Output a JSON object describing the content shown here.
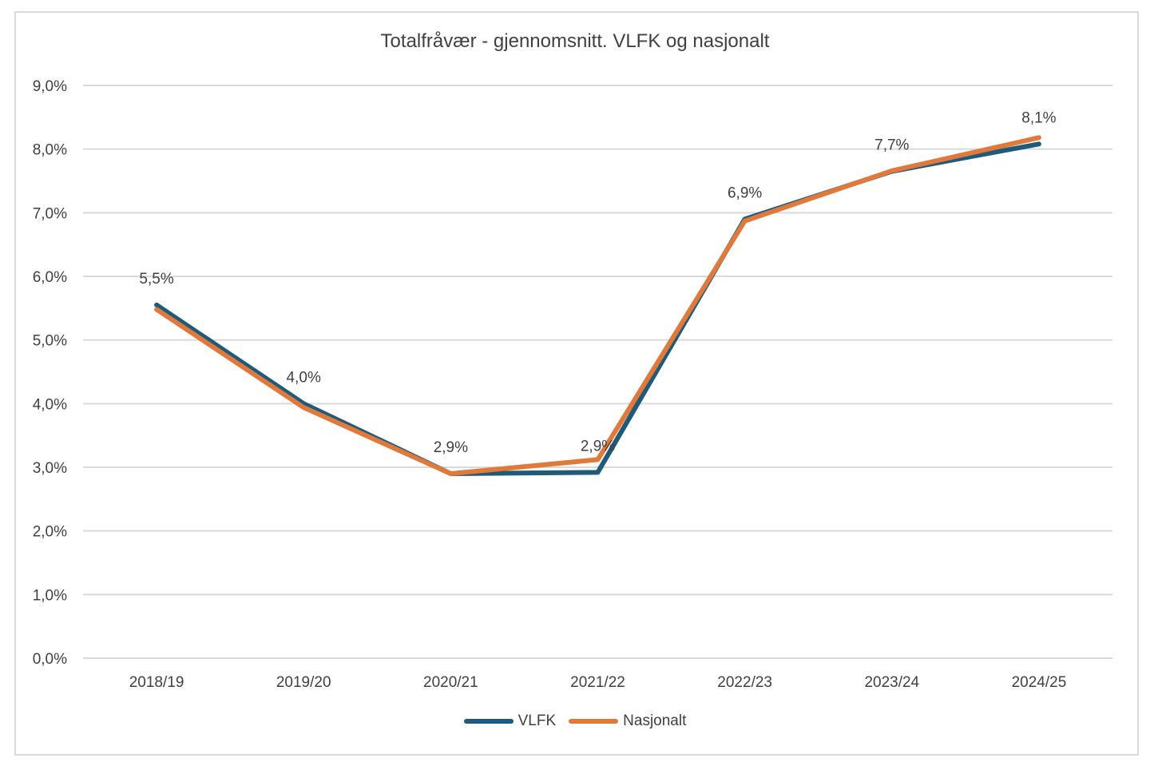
{
  "chart_data": {
    "type": "line",
    "title": "Totalfråvær - gjennomsnitt. VLFK og nasjonalt",
    "categories": [
      "2018/19",
      "2019/20",
      "2020/21",
      "2021/22",
      "2022/23",
      "2023/24",
      "2024/25"
    ],
    "series": [
      {
        "name": "VLFK",
        "color": "#1f5a7a",
        "values": [
          5.55,
          4.0,
          2.9,
          2.92,
          6.9,
          7.65,
          8.08
        ]
      },
      {
        "name": "Nasjonalt",
        "color": "#e07a3c",
        "values": [
          5.48,
          3.94,
          2.9,
          3.12,
          6.87,
          7.66,
          8.18
        ]
      }
    ],
    "data_labels": [
      "5,5%",
      "4,0%",
      "2,9%",
      "2,9%",
      "6,9%",
      "7,7%",
      "8,1%"
    ],
    "y_ticks": [
      "0,0%",
      "1,0%",
      "2,0%",
      "3,0%",
      "4,0%",
      "5,0%",
      "6,0%",
      "7,0%",
      "8,0%",
      "9,0%"
    ],
    "ylim": [
      0,
      9
    ],
    "grid": true,
    "legend_position": "bottom",
    "gridline_color": "#d9d9d9",
    "text_color": "#404040"
  }
}
